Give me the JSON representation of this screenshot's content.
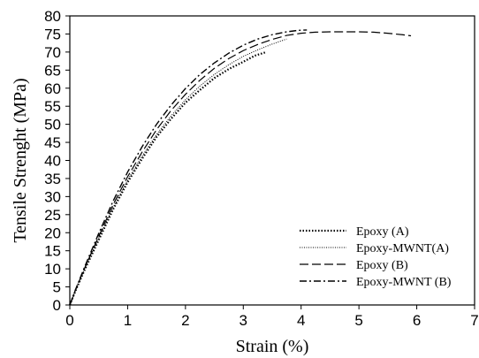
{
  "chart_data": {
    "type": "line",
    "title": "",
    "xlabel": "Strain (%)",
    "ylabel": "Tensile Strenght (MPa)",
    "xlim": [
      0,
      7
    ],
    "ylim": [
      0,
      80
    ],
    "xticks": [
      "0",
      "1",
      "2",
      "3",
      "4",
      "5",
      "6",
      "7"
    ],
    "yticks": [
      "0",
      "5",
      "10",
      "15",
      "20",
      "25",
      "30",
      "35",
      "40",
      "45",
      "50",
      "55",
      "60",
      "65",
      "70",
      "75",
      "80"
    ],
    "grid": false,
    "legend_position": "bottom-right",
    "series": [
      {
        "name": "Epoxy (A)",
        "style": "dotted-bold",
        "x": [
          0,
          0.1,
          0.25,
          0.5,
          0.75,
          1.0,
          1.25,
          1.5,
          1.75,
          2.0,
          2.25,
          2.5,
          2.75,
          3.0,
          3.2,
          3.4
        ],
        "y": [
          0,
          4,
          9.5,
          18,
          26.5,
          34,
          40.5,
          46.5,
          51.5,
          56,
          59.5,
          62.8,
          65.3,
          67.3,
          69,
          70
        ]
      },
      {
        "name": "Epoxy-MWNT(A)",
        "style": "dotted-thin",
        "x": [
          0,
          0.1,
          0.25,
          0.5,
          0.75,
          1.0,
          1.25,
          1.5,
          1.75,
          2.0,
          2.25,
          2.5,
          2.75,
          3.0,
          3.25,
          3.5,
          3.75
        ],
        "y": [
          0,
          4,
          9.7,
          18.5,
          27,
          34.6,
          41.2,
          47.2,
          52.3,
          56.8,
          60.6,
          63.8,
          66.5,
          68.8,
          70.6,
          72.2,
          73.6
        ]
      },
      {
        "name": "Epoxy (B)",
        "style": "dashed",
        "x": [
          0,
          0.1,
          0.25,
          0.5,
          0.75,
          1.0,
          1.25,
          1.5,
          1.75,
          2.0,
          2.25,
          2.5,
          2.75,
          3.0,
          3.25,
          3.5,
          3.75,
          4.0,
          4.25,
          4.5,
          4.75,
          5.0,
          5.25,
          5.5,
          5.75,
          5.9
        ],
        "y": [
          0,
          4.2,
          10,
          19,
          27.8,
          35.5,
          42.3,
          48.5,
          53.8,
          58.3,
          62.2,
          65.5,
          68.2,
          70.4,
          72.1,
          73.5,
          74.6,
          75.2,
          75.5,
          75.6,
          75.6,
          75.6,
          75.5,
          75.2,
          74.8,
          74.5
        ]
      },
      {
        "name": "Epoxy-MWNT (B)",
        "style": "dash-dot",
        "x": [
          0,
          0.1,
          0.25,
          0.5,
          0.75,
          1.0,
          1.25,
          1.5,
          1.75,
          2.0,
          2.25,
          2.5,
          2.75,
          3.0,
          3.25,
          3.5,
          3.75,
          3.95,
          4.1
        ],
        "y": [
          0,
          4.3,
          10.3,
          19.8,
          28.8,
          36.8,
          43.8,
          50,
          55.3,
          59.9,
          63.8,
          67,
          69.7,
          71.9,
          73.6,
          74.8,
          75.6,
          76,
          76.1
        ]
      }
    ]
  }
}
